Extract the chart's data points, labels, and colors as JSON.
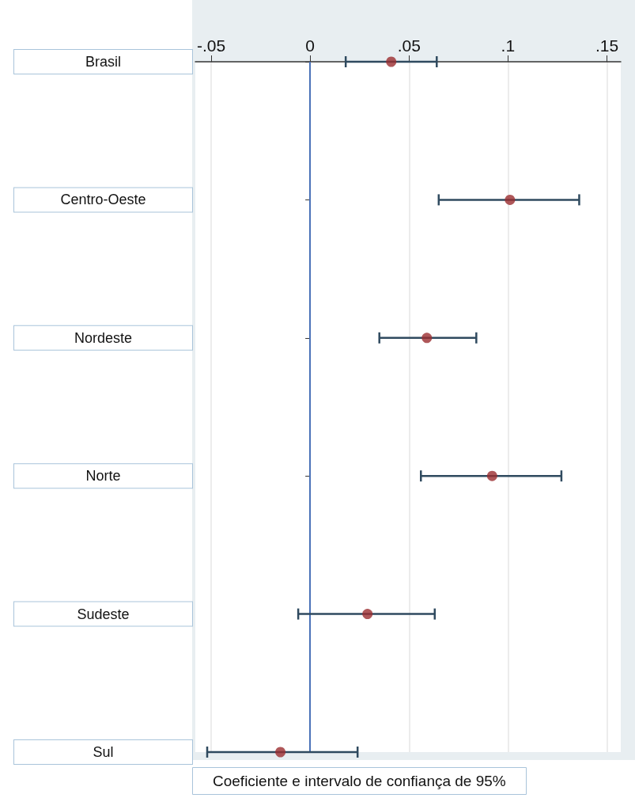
{
  "chart_data": {
    "type": "scatter",
    "orientation": "horizontal",
    "xlabel": "Coeficiente e intervalo de confiança de 95%",
    "categories": [
      "Brasil",
      "Centro-Oeste",
      "Nordeste",
      "Norte",
      "Sudeste",
      "Sul"
    ],
    "values": [
      0.041,
      0.101,
      0.059,
      0.092,
      0.029,
      -0.015
    ],
    "errors": [
      [
        0.018,
        0.064
      ],
      [
        0.065,
        0.136
      ],
      [
        0.035,
        0.084
      ],
      [
        0.056,
        0.127
      ],
      [
        -0.006,
        0.063
      ],
      [
        -0.052,
        0.024
      ]
    ],
    "color": "#9b2d30",
    "marker": "circle",
    "xlim": [
      -0.058,
      0.157
    ],
    "xticks": [
      {
        "value": -0.05,
        "label": "-.05"
      },
      0,
      {
        "value": 0.05,
        "label": ".05"
      },
      {
        "value": 0.1,
        "label": ".1"
      },
      {
        "value": 0.15,
        "label": ".15"
      }
    ],
    "grid": "x",
    "ref_lines": [
      {
        "axis": "x",
        "value": 0,
        "color": "#4a72b8"
      }
    ]
  }
}
